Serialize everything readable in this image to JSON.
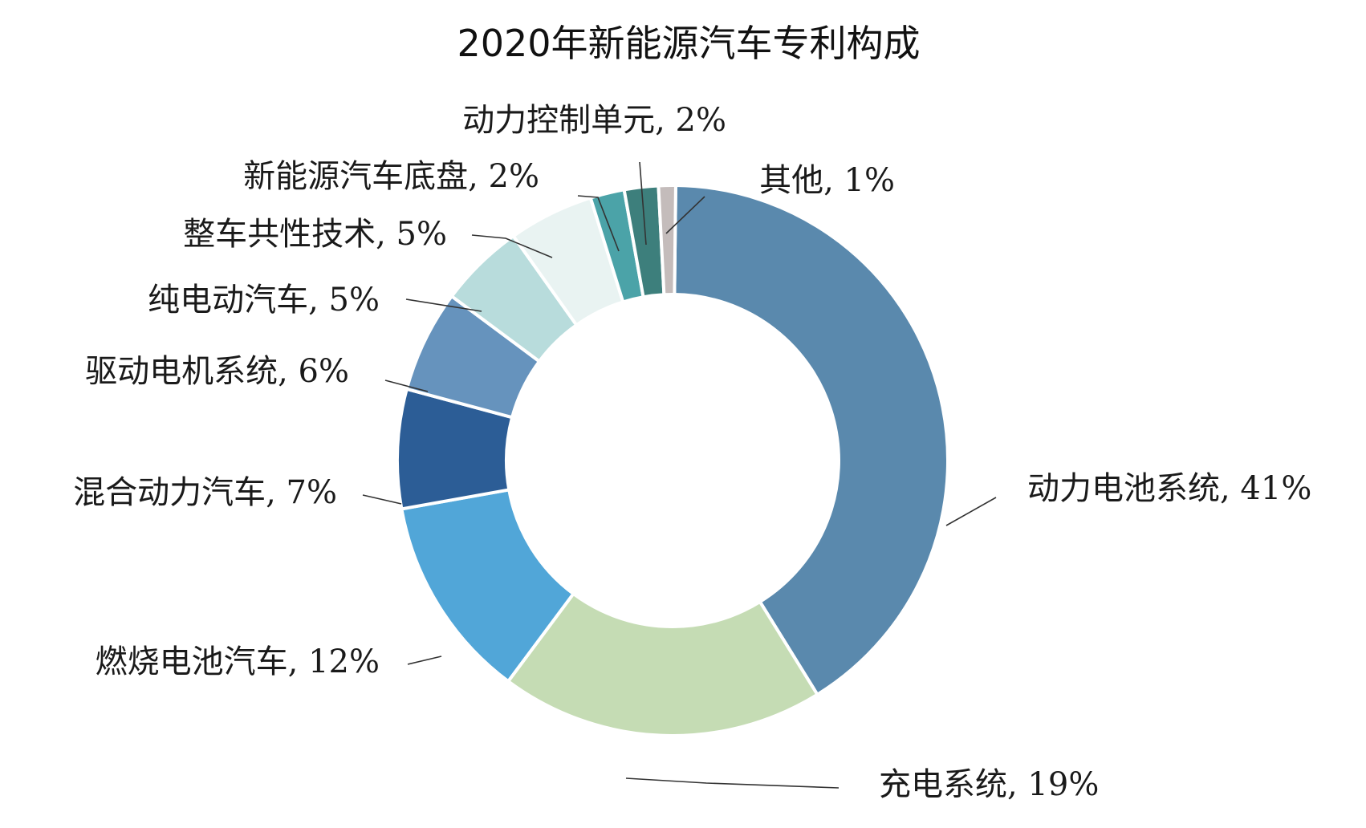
{
  "chart_data": {
    "type": "pie",
    "variant": "donut",
    "title": "2020年新能源汽车专利构成",
    "series": [
      {
        "slices": [
          {
            "label": "动力电池系统",
            "value": 41,
            "color": "#5a89ad"
          },
          {
            "label": "充电系统",
            "value": 19,
            "color": "#c5dcb4"
          },
          {
            "label": "燃烧电池汽车",
            "value": 12,
            "color": "#51a6d8"
          },
          {
            "label": "混合动力汽车",
            "value": 7,
            "color": "#2c5d96"
          },
          {
            "label": "驱动电机系统",
            "value": 6,
            "color": "#6693bd"
          },
          {
            "label": "纯电动汽车",
            "value": 5,
            "color": "#b8dcdc"
          },
          {
            "label": "整车共性技术",
            "value": 5,
            "color": "#e9f3f2"
          },
          {
            "label": "新能源汽车底盘",
            "value": 2,
            "color": "#4ba3a8"
          },
          {
            "label": "动力控制单元",
            "value": 2,
            "color": "#3d7f7c"
          },
          {
            "label": "其他",
            "value": 1,
            "color": "#c4bcbb"
          }
        ]
      }
    ],
    "label_format": "{label}, {value}%",
    "legend": "none"
  }
}
